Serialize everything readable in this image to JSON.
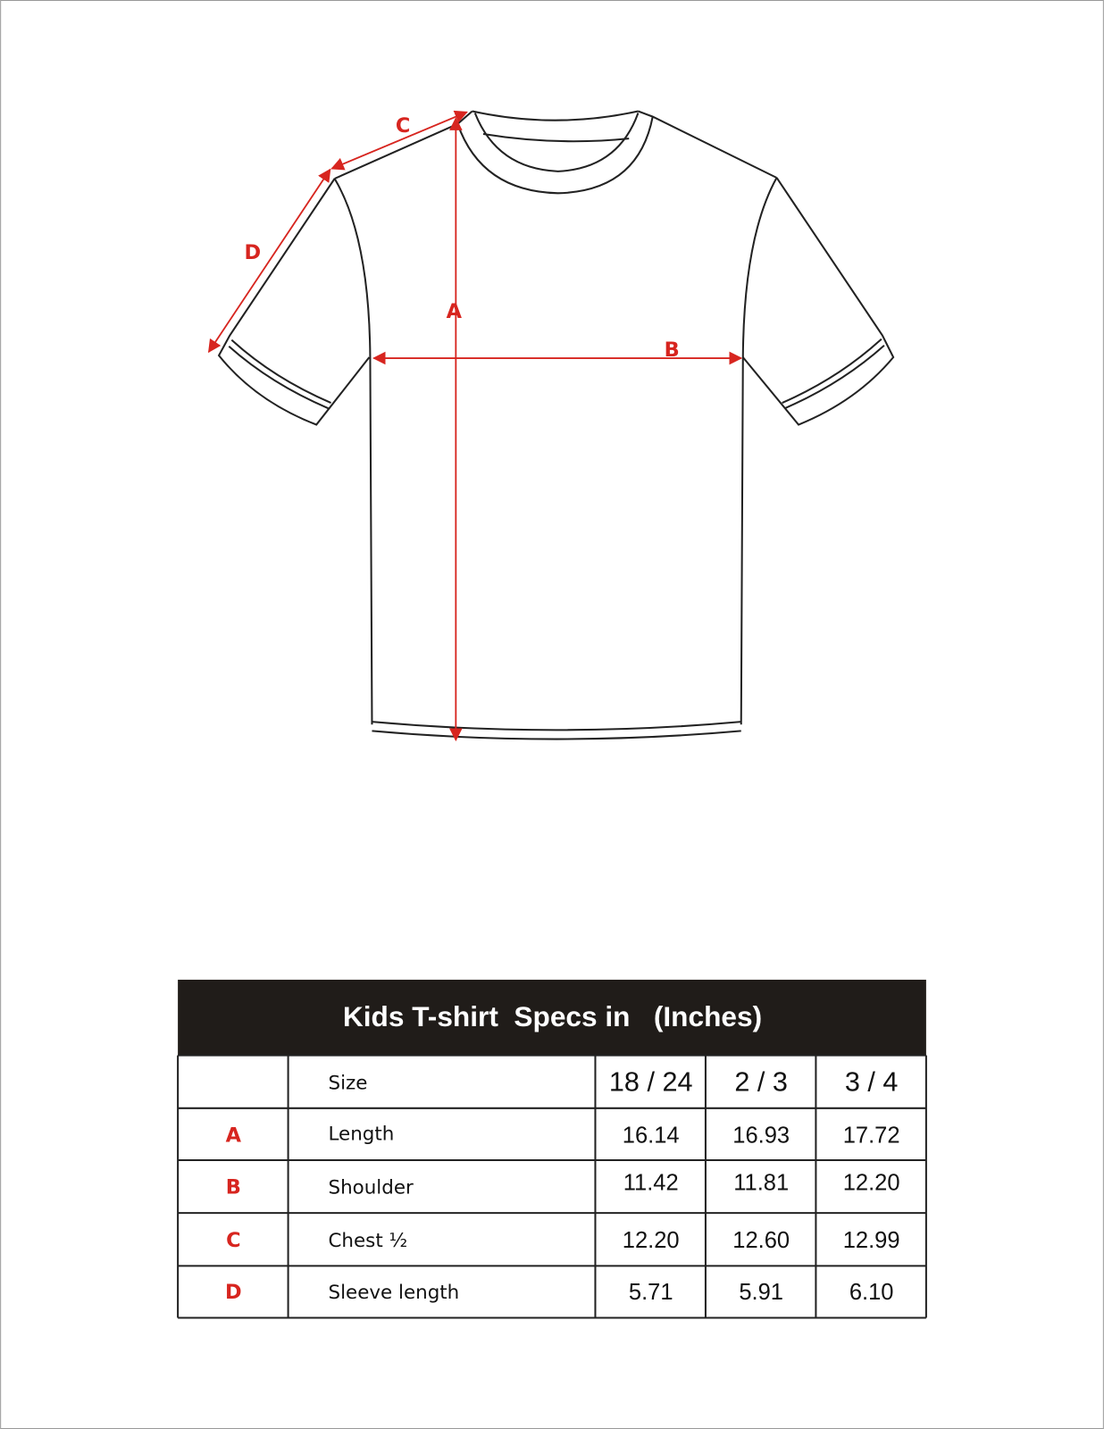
{
  "diagram": {
    "labels": {
      "a": "A",
      "b": "B",
      "c": "C",
      "d": "D"
    },
    "accent_color": "#d7251f"
  },
  "table": {
    "title": "Kids T-shirt  Specs in   (Inches)",
    "size_label": "Size",
    "sizes": [
      "18 / 24",
      "2 / 3",
      "3 / 4"
    ],
    "rows": [
      {
        "key": "A",
        "name": "Length",
        "values": [
          "16.14",
          "16.93",
          "17.72"
        ]
      },
      {
        "key": "B",
        "name": "Shoulder",
        "values": [
          "11.42",
          "11.81",
          "12.20"
        ]
      },
      {
        "key": "C",
        "name": "Chest ½",
        "values": [
          "12.20",
          "12.60",
          "12.99"
        ]
      },
      {
        "key": "D",
        "name": "Sleeve length",
        "values": [
          "5.71",
          "5.91",
          "6.10"
        ]
      }
    ]
  }
}
